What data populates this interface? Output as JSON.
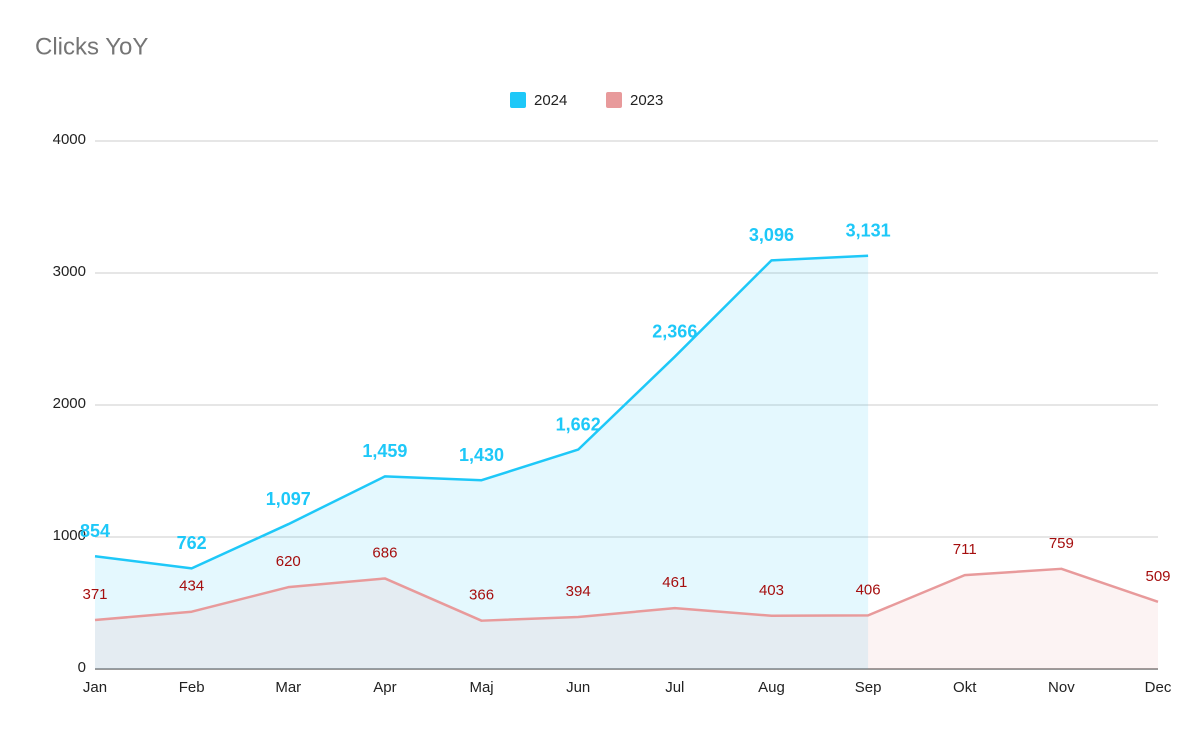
{
  "chart_data": {
    "type": "area",
    "title": "Clicks YoY",
    "categories": [
      "Jan",
      "Feb",
      "Mar",
      "Apr",
      "Maj",
      "Jun",
      "Jul",
      "Aug",
      "Sep",
      "Okt",
      "Nov",
      "Dec"
    ],
    "series": [
      {
        "name": "2024",
        "color": "#1ec8f8",
        "label_color": "#1ec8f8",
        "values": [
          854,
          762,
          1097,
          1459,
          1430,
          1662,
          2366,
          3096,
          3131,
          null,
          null,
          null
        ],
        "value_labels": [
          "854",
          "762",
          "1,097",
          "1,459",
          "1,430",
          "1,662",
          "2,366",
          "3,096",
          "3,131",
          null,
          null,
          null
        ]
      },
      {
        "name": "2023",
        "color": "#e89a9b",
        "label_color": "#a50e0e",
        "values": [
          371,
          434,
          620,
          686,
          366,
          394,
          461,
          403,
          406,
          711,
          759,
          509
        ]
      }
    ],
    "ylim": [
      0,
      4000
    ],
    "yticks": [
      0,
      1000,
      2000,
      3000,
      4000
    ],
    "grid": true,
    "legend": "top"
  }
}
